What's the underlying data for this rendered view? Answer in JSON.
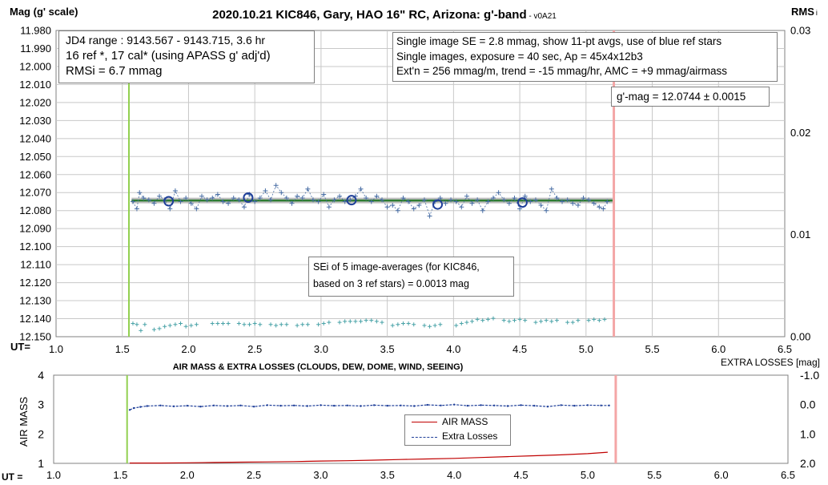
{
  "chart_data": [
    {
      "type": "scatter",
      "title": "2020.10.21 KIC846, Gary, HAO 16\" RC, Arizona: g'-band",
      "version_tag": " - v0A21",
      "ylabel": "Mag (g' scale)",
      "y2label": "RMS",
      "y2label_sub": "i",
      "xlabel": "UT=",
      "xlim": [
        1.0,
        6.5
      ],
      "ylim": [
        11.98,
        12.15
      ],
      "y_inverted": true,
      "y2lim": [
        0.0,
        0.03
      ],
      "x_ticks": [
        "1.0",
        "1.5",
        "2.0",
        "2.5",
        "3.0",
        "3.5",
        "4.0",
        "4.5",
        "5.0",
        "5.5",
        "6.0",
        "6.5"
      ],
      "y_ticks": [
        "11.980",
        "11.990",
        "12.000",
        "12.010",
        "12.020",
        "12.030",
        "12.040",
        "12.050",
        "12.060",
        "12.070",
        "12.080",
        "12.090",
        "12.100",
        "12.110",
        "12.120",
        "12.130",
        "12.140",
        "12.150"
      ],
      "y2_ticks": [
        "0.03",
        "0.02",
        "0.01",
        "0.00"
      ],
      "grid": true,
      "start_line_x": 1.55,
      "end_line_x": 5.21,
      "fit_mag": 12.0744,
      "fit_x_range": [
        1.57,
        5.2
      ],
      "individual_points": {
        "x": [
          1.58,
          1.61,
          1.63,
          1.66,
          1.7,
          1.74,
          1.78,
          1.82,
          1.86,
          1.9,
          1.94,
          1.98,
          2.02,
          2.06,
          2.1,
          2.14,
          2.18,
          2.22,
          2.26,
          2.3,
          2.34,
          2.38,
          2.42,
          2.46,
          2.5,
          2.54,
          2.58,
          2.62,
          2.66,
          2.7,
          2.74,
          2.78,
          2.82,
          2.86,
          2.9,
          2.94,
          2.98,
          3.02,
          3.06,
          3.1,
          3.14,
          3.18,
          3.22,
          3.26,
          3.3,
          3.34,
          3.38,
          3.42,
          3.46,
          3.5,
          3.54,
          3.58,
          3.62,
          3.66,
          3.7,
          3.74,
          3.78,
          3.82,
          3.86,
          3.9,
          3.94,
          3.98,
          4.02,
          4.06,
          4.1,
          4.14,
          4.18,
          4.22,
          4.26,
          4.3,
          4.34,
          4.38,
          4.42,
          4.46,
          4.5,
          4.54,
          4.58,
          4.62,
          4.66,
          4.7,
          4.74,
          4.78,
          4.82,
          4.86,
          4.9,
          4.94,
          4.98,
          5.02,
          5.06,
          5.1,
          5.13,
          5.16
        ],
        "y": [
          12.075,
          12.079,
          12.07,
          12.073,
          12.074,
          12.076,
          12.072,
          12.074,
          12.079,
          12.069,
          12.075,
          12.073,
          12.076,
          12.079,
          12.072,
          12.074,
          12.073,
          12.071,
          12.075,
          12.076,
          12.073,
          12.074,
          12.078,
          12.071,
          12.075,
          12.073,
          12.069,
          12.074,
          12.066,
          12.07,
          12.073,
          12.076,
          12.072,
          12.073,
          12.068,
          12.074,
          12.075,
          12.071,
          12.078,
          12.074,
          12.072,
          12.075,
          12.074,
          12.072,
          12.068,
          12.073,
          12.075,
          12.072,
          12.074,
          12.078,
          12.077,
          12.08,
          12.073,
          12.075,
          12.079,
          12.077,
          12.074,
          12.083,
          12.075,
          12.073,
          12.076,
          12.074,
          12.075,
          12.078,
          12.072,
          12.076,
          12.074,
          12.08,
          12.075,
          12.073,
          12.07,
          12.074,
          12.076,
          12.073,
          12.079,
          12.072,
          12.075,
          12.074,
          12.077,
          12.08,
          12.068,
          12.073,
          12.075,
          12.074,
          12.076,
          12.077,
          12.073,
          12.074,
          12.076,
          12.078,
          12.079,
          12.075
        ]
      },
      "averaged_points": {
        "x": [
          1.85,
          2.45,
          3.23,
          3.88,
          4.52
        ],
        "y": [
          12.0748,
          12.0728,
          12.0742,
          12.0766,
          12.0755
        ]
      },
      "rms_points": {
        "x": [
          1.58,
          1.61,
          1.64,
          1.67,
          1.74,
          1.78,
          1.82,
          1.86,
          1.9,
          1.94,
          1.98,
          2.02,
          2.06,
          2.18,
          2.22,
          2.26,
          2.3,
          2.38,
          2.42,
          2.46,
          2.5,
          2.54,
          2.62,
          2.66,
          2.7,
          2.74,
          2.82,
          2.86,
          2.9,
          2.98,
          3.02,
          3.06,
          3.14,
          3.18,
          3.22,
          3.26,
          3.3,
          3.34,
          3.38,
          3.42,
          3.46,
          3.54,
          3.58,
          3.62,
          3.66,
          3.7,
          3.78,
          3.82,
          3.86,
          3.9,
          4.02,
          4.06,
          4.1,
          4.14,
          4.18,
          4.22,
          4.26,
          4.3,
          4.38,
          4.42,
          4.46,
          4.5,
          4.54,
          4.62,
          4.66,
          4.7,
          4.74,
          4.78,
          4.86,
          4.9,
          4.94,
          5.02,
          5.06,
          5.1,
          5.14
        ],
        "y": [
          0.0013,
          0.0012,
          0.0006,
          0.0012,
          0.0007,
          0.0008,
          0.001,
          0.0011,
          0.0012,
          0.0013,
          0.001,
          0.0011,
          0.0012,
          0.0013,
          0.0013,
          0.0013,
          0.0013,
          0.0013,
          0.0012,
          0.0012,
          0.0013,
          0.0012,
          0.0012,
          0.0011,
          0.0012,
          0.0012,
          0.0011,
          0.0012,
          0.0012,
          0.0012,
          0.0013,
          0.0014,
          0.0014,
          0.0015,
          0.0015,
          0.0015,
          0.0015,
          0.0016,
          0.0016,
          0.0015,
          0.0014,
          0.0011,
          0.0012,
          0.0013,
          0.0013,
          0.0012,
          0.0011,
          0.001,
          0.0011,
          0.0012,
          0.0011,
          0.0013,
          0.0014,
          0.0015,
          0.0017,
          0.0016,
          0.0017,
          0.0018,
          0.0016,
          0.0015,
          0.0016,
          0.0017,
          0.0016,
          0.0014,
          0.0015,
          0.0016,
          0.0015,
          0.0016,
          0.0014,
          0.0014,
          0.0016,
          0.0016,
          0.0017,
          0.0016,
          0.0017
        ]
      },
      "annotations": {
        "info_box": [
          "JD4 range : 9143.567 - 9143.715,  3.6  hr",
          "16 ref *, 17 cal* (using APASS g' adj'd)",
          "RMSi = 6.7 mmag"
        ],
        "settings_box": [
          "Single image SE = 2.8 mmag, show  11-pt avgs, use of blue ref stars",
          "Single images, exposure = 40 sec, Ap = 45x4x12b3",
          "Ext'n = 256 mmag/m, trend =  -15 mmag/hr, AMC = +9 mmag/airmass"
        ],
        "mag_result": "g'-mag = 12.0744 ± 0.0015",
        "sei_note": [
          "SEi of 5 image-averages (for KIC846,",
          "based on 3 ref stars) = 0.0013 mag"
        ]
      },
      "colors": {
        "points": "#4a6fa5",
        "averages": "#1f3f99",
        "fit_line": "#2e7d32",
        "fit_band": "#b0b0b0",
        "rms": "#4aa3a8",
        "start_line": "#92d050",
        "end_line": "#f4a6a6"
      }
    },
    {
      "type": "line",
      "title": "AIR MASS & EXTRA LOSSES (CLOUDS, DEW, DOME, WIND, SEEING)",
      "ylabel": "AIR MASS",
      "y2label": "EXTRA LOSSES [mag]",
      "xlabel": "UT =",
      "xlim": [
        1.0,
        6.5
      ],
      "ylim": [
        1,
        4
      ],
      "y2lim": [
        -1.0,
        2.0
      ],
      "y2_inverted": true,
      "x_ticks": [
        "1.0",
        "1.5",
        "2.0",
        "2.5",
        "3.0",
        "3.5",
        "4.0",
        "4.5",
        "5.0",
        "5.5",
        "6.0",
        "6.5"
      ],
      "y_ticks": [
        "4",
        "3",
        "2",
        "1"
      ],
      "y2_ticks": [
        "-1.0",
        "0.0",
        "1.0",
        "2.0"
      ],
      "start_line_x": 1.55,
      "end_line_x": 5.21,
      "legend_location": "center",
      "series": [
        {
          "name": "AIR MASS",
          "axis": "left",
          "color": "#c00000",
          "x": [
            1.57,
            1.8,
            2.0,
            2.2,
            2.4,
            2.6,
            2.8,
            3.0,
            3.2,
            3.4,
            3.6,
            3.8,
            4.0,
            4.2,
            4.4,
            4.6,
            4.8,
            5.0,
            5.15
          ],
          "y": [
            1.01,
            1.01,
            1.02,
            1.03,
            1.04,
            1.05,
            1.06,
            1.08,
            1.09,
            1.11,
            1.13,
            1.15,
            1.17,
            1.2,
            1.23,
            1.26,
            1.29,
            1.33,
            1.38
          ]
        },
        {
          "name": "Extra Losses",
          "axis": "right",
          "color": "#1f3f99",
          "x": [
            1.57,
            1.6,
            1.65,
            1.7,
            1.8,
            1.9,
            2.0,
            2.1,
            2.2,
            2.3,
            2.4,
            2.5,
            2.6,
            2.7,
            2.8,
            2.9,
            3.0,
            3.1,
            3.2,
            3.3,
            3.4,
            3.5,
            3.6,
            3.7,
            3.8,
            3.9,
            4.0,
            4.1,
            4.2,
            4.3,
            4.4,
            4.5,
            4.6,
            4.7,
            4.8,
            4.9,
            5.0,
            5.1,
            5.16
          ],
          "y": [
            0.18,
            0.12,
            0.08,
            0.05,
            0.03,
            0.06,
            0.04,
            0.07,
            0.03,
            0.05,
            0.03,
            0.07,
            0.02,
            0.04,
            0.03,
            0.05,
            0.02,
            0.04,
            0.03,
            0.05,
            0.02,
            0.04,
            0.03,
            0.05,
            0.01,
            0.03,
            0.0,
            0.04,
            0.02,
            0.03,
            0.05,
            0.02,
            0.04,
            0.07,
            0.02,
            0.04,
            0.02,
            0.03,
            0.03
          ]
        }
      ]
    }
  ]
}
